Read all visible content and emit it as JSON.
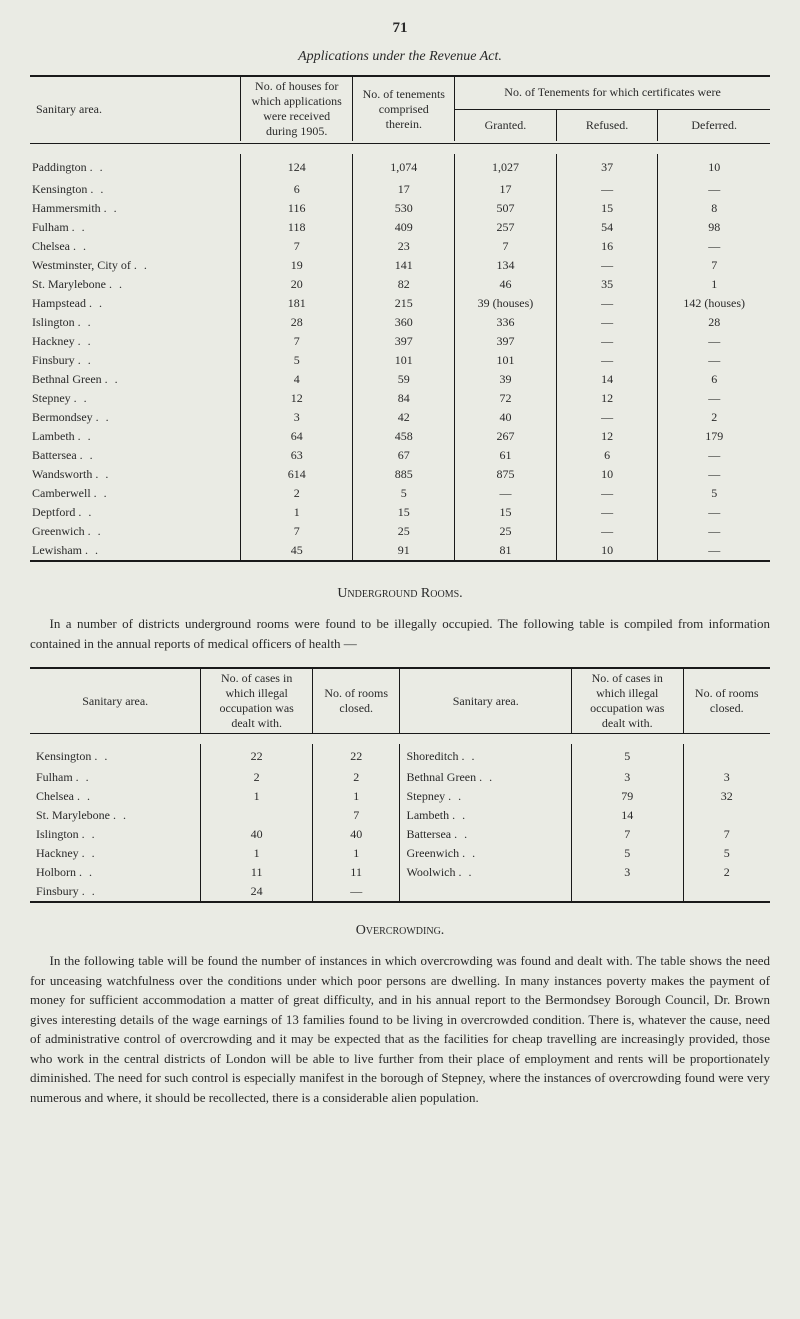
{
  "page_number": "71",
  "table1": {
    "title": "Applications under the Revenue Act.",
    "headers": {
      "sanitary": "Sanitary area.",
      "houses": "No. of houses for which applications were received during 1905.",
      "tenements": "No. of tenements comprised therein.",
      "cert_group": "No. of Tenements for which certificates were",
      "granted": "Granted.",
      "refused": "Refused.",
      "deferred": "Deferred."
    },
    "rows": [
      {
        "area": "Paddington",
        "houses": "124",
        "ten": "1,074",
        "g": "1,027",
        "r": "37",
        "d": "10"
      },
      {
        "area": "Kensington",
        "houses": "6",
        "ten": "17",
        "g": "17",
        "r": "—",
        "d": "—"
      },
      {
        "area": "Hammersmith",
        "houses": "116",
        "ten": "530",
        "g": "507",
        "r": "15",
        "d": "8"
      },
      {
        "area": "Fulham",
        "houses": "118",
        "ten": "409",
        "g": "257",
        "r": "54",
        "d": "98"
      },
      {
        "area": "Chelsea",
        "houses": "7",
        "ten": "23",
        "g": "7",
        "r": "16",
        "d": "—"
      },
      {
        "area": "Westminster, City of",
        "houses": "19",
        "ten": "141",
        "g": "134",
        "r": "—",
        "d": "7"
      },
      {
        "area": "St. Marylebone",
        "houses": "20",
        "ten": "82",
        "g": "46",
        "r": "35",
        "d": "1"
      },
      {
        "area": "Hampstead",
        "houses": "181",
        "ten": "215",
        "g": "39 (houses)",
        "r": "—",
        "d": "142 (houses)"
      },
      {
        "area": "Islington",
        "houses": "28",
        "ten": "360",
        "g": "336",
        "r": "—",
        "d": "28"
      },
      {
        "area": "Hackney",
        "houses": "7",
        "ten": "397",
        "g": "397",
        "r": "—",
        "d": "—"
      },
      {
        "area": "Finsbury",
        "houses": "5",
        "ten": "101",
        "g": "101",
        "r": "—",
        "d": "—"
      },
      {
        "area": "Bethnal Green",
        "houses": "4",
        "ten": "59",
        "g": "39",
        "r": "14",
        "d": "6"
      },
      {
        "area": "Stepney",
        "houses": "12",
        "ten": "84",
        "g": "72",
        "r": "12",
        "d": "—"
      },
      {
        "area": "Bermondsey",
        "houses": "3",
        "ten": "42",
        "g": "40",
        "r": "—",
        "d": "2"
      },
      {
        "area": "Lambeth",
        "houses": "64",
        "ten": "458",
        "g": "267",
        "r": "12",
        "d": "179"
      },
      {
        "area": "Battersea",
        "houses": "63",
        "ten": "67",
        "g": "61",
        "r": "6",
        "d": "—"
      },
      {
        "area": "Wandsworth",
        "houses": "614",
        "ten": "885",
        "g": "875",
        "r": "10",
        "d": "—"
      },
      {
        "area": "Camberwell",
        "houses": "2",
        "ten": "5",
        "g": "—",
        "r": "—",
        "d": "5"
      },
      {
        "area": "Deptford",
        "houses": "1",
        "ten": "15",
        "g": "15",
        "r": "—",
        "d": "—"
      },
      {
        "area": "Greenwich",
        "houses": "7",
        "ten": "25",
        "g": "25",
        "r": "—",
        "d": "—"
      },
      {
        "area": "Lewisham",
        "houses": "45",
        "ten": "91",
        "g": "81",
        "r": "10",
        "d": "—"
      }
    ]
  },
  "underground": {
    "heading": "Underground Rooms.",
    "paragraph": "In a number of districts underground rooms were found to be illegally occupied. The following table is compiled from information contained in the annual reports of medical officers of health —"
  },
  "table2": {
    "headers": {
      "sanitary": "Sanitary area.",
      "cases": "No. of cases in which illegal occupation was dealt with.",
      "closed": "No. of rooms closed."
    },
    "left_rows": [
      {
        "area": "Kensington",
        "cases": "22",
        "closed": "22"
      },
      {
        "area": "Fulham",
        "cases": "2",
        "closed": "2"
      },
      {
        "area": "Chelsea",
        "cases": "1",
        "closed": "1"
      },
      {
        "area": "St. Marylebone",
        "cases": "",
        "closed": "7"
      },
      {
        "area": "Islington",
        "cases": "40",
        "closed": "40"
      },
      {
        "area": "Hackney",
        "cases": "1",
        "closed": "1"
      },
      {
        "area": "Holborn",
        "cases": "11",
        "closed": "11"
      },
      {
        "area": "Finsbury",
        "cases": "24",
        "closed": "—"
      }
    ],
    "right_rows": [
      {
        "area": "Shoreditch",
        "cases": "5",
        "closed": ""
      },
      {
        "area": "Bethnal Green",
        "cases": "3",
        "closed": "3"
      },
      {
        "area": "Stepney",
        "cases": "79",
        "closed": "32"
      },
      {
        "area": "Lambeth",
        "cases": "14",
        "closed": ""
      },
      {
        "area": "Battersea",
        "cases": "7",
        "closed": "7"
      },
      {
        "area": "Greenwich",
        "cases": "5",
        "closed": "5"
      },
      {
        "area": "Woolwich",
        "cases": "3",
        "closed": "2"
      },
      {
        "area": "",
        "cases": "",
        "closed": ""
      }
    ]
  },
  "overcrowding": {
    "heading": "Overcrowding.",
    "paragraph": "In the following table will be found the number of instances in which overcrowding was found and dealt with. The table shows the need for unceasing watchfulness over the conditions under which poor persons are dwelling. In many instances poverty makes the payment of money for sufficient accommodation a matter of great difficulty, and in his annual report to the Bermondsey Borough Council, Dr. Brown gives interesting details of the wage earnings of 13 families found to be living in overcrowded condition. There is, whatever the cause, need of administrative control of overcrowding and it may be expected that as the facilities for cheap travelling are increasingly provided, those who work in the central districts of London will be able to live further from their place of employment and rents will be proportionately diminished. The need for such control is especially manifest in the borough of Stepney, where the instances of overcrowding found were very numerous and where, it should be recollected, there is a considerable alien population."
  },
  "style": {
    "background": "#eaebe4",
    "text_color": "#2a2a2a",
    "rule_color": "#1a1a1a",
    "font": "Georgia serif",
    "base_fontsize": 12
  }
}
